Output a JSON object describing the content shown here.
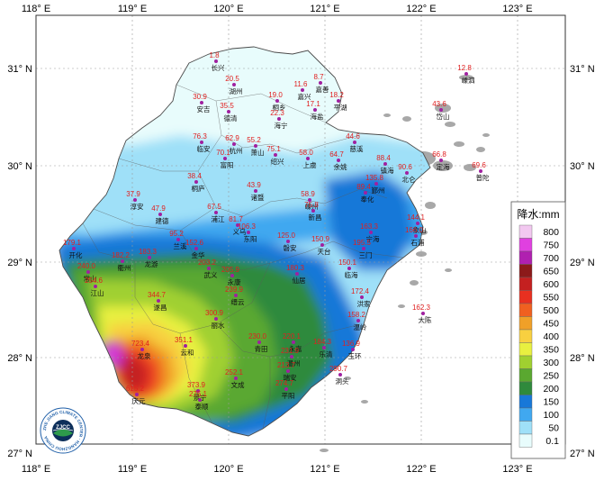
{
  "map": {
    "lon_ticks": [
      "118° E",
      "119° E",
      "120° E",
      "121° E",
      "122° E",
      "123° E"
    ],
    "lat_ticks": [
      "31° N",
      "30° N",
      "29° N",
      "28° N",
      "27° N"
    ],
    "logo_text": "ZJCC",
    "logo_ring_text": "ZHE JIANG CLIMATE CENTER · HANGZHOU CHINA",
    "land_color": "#b0b0b0",
    "ocean_color": "#ffffff"
  },
  "legend": {
    "title": "降水:mm",
    "labels": [
      "800",
      "750",
      "700",
      "650",
      "600",
      "550",
      "500",
      "450",
      "400",
      "350",
      "300",
      "250",
      "200",
      "150",
      "100",
      "50",
      "0.1"
    ],
    "colors": [
      "#f2c8f0",
      "#e040e0",
      "#b020b0",
      "#8c1a1a",
      "#c42020",
      "#e83020",
      "#f06020",
      "#f0a028",
      "#f8d040",
      "#e8f040",
      "#a0d030",
      "#5aa830",
      "#2f8a3c",
      "#1878d8",
      "#40a8f0",
      "#9fe0f8",
      "#e8fcfc"
    ]
  },
  "stations": [
    {
      "name": "长兴",
      "value": "1.8"
    },
    {
      "name": "湖州",
      "value": "20.5"
    },
    {
      "name": "安吉",
      "value": "30.9"
    },
    {
      "name": "德清",
      "value": "35.5"
    },
    {
      "name": "桐乡",
      "value": "19.0"
    },
    {
      "name": "嘉兴",
      "value": "11.6"
    },
    {
      "name": "嘉善",
      "value": "8.7"
    },
    {
      "name": "平湖",
      "value": "18.2"
    },
    {
      "name": "海盐",
      "value": "17.1"
    },
    {
      "name": "海宁",
      "value": "22.3"
    },
    {
      "name": "嵊泗",
      "value": "12.8"
    },
    {
      "name": "岱山",
      "value": "43.6"
    },
    {
      "name": "临安",
      "value": "76.3"
    },
    {
      "name": "杭州",
      "value": "62.9"
    },
    {
      "name": "萧山",
      "value": "55.2"
    },
    {
      "name": "富阳",
      "value": "70.1"
    },
    {
      "name": "绍兴",
      "value": "75.1"
    },
    {
      "name": "上虞",
      "value": "58.0"
    },
    {
      "name": "余姚",
      "value": "64.7"
    },
    {
      "name": "慈溪",
      "value": "44.6"
    },
    {
      "name": "镇海",
      "value": "88.4"
    },
    {
      "name": "北仑",
      "value": "90.6"
    },
    {
      "name": "定海",
      "value": "66.8"
    },
    {
      "name": "普陀",
      "value": "69.6"
    },
    {
      "name": "桐庐",
      "value": "38.4"
    },
    {
      "name": "诸暨",
      "value": "43.9"
    },
    {
      "name": "嵊州",
      "value": "58.9"
    },
    {
      "name": "新昌",
      "value": "75.8"
    },
    {
      "name": "奉化",
      "value": "89.4"
    },
    {
      "name": "鄞州",
      "value": "135.8"
    },
    {
      "name": "象山",
      "value": "144.1"
    },
    {
      "name": "石浦",
      "value": "166.0"
    },
    {
      "name": "宁海",
      "value": "163.3"
    },
    {
      "name": "三门",
      "value": "195.5"
    },
    {
      "name": "淳安",
      "value": "37.9"
    },
    {
      "name": "建德",
      "value": "47.9"
    },
    {
      "name": "浦江",
      "value": "67.5"
    },
    {
      "name": "义乌",
      "value": "81.7"
    },
    {
      "name": "东阳",
      "value": "106.3"
    },
    {
      "name": "磐安",
      "value": "125.0"
    },
    {
      "name": "天台",
      "value": "150.9"
    },
    {
      "name": "临海",
      "value": "150.1"
    },
    {
      "name": "开化",
      "value": "179.1"
    },
    {
      "name": "衢州",
      "value": "182.2"
    },
    {
      "name": "龙游",
      "value": "183.3"
    },
    {
      "name": "兰溪",
      "value": "95.2"
    },
    {
      "name": "金华",
      "value": "152.6"
    },
    {
      "name": "武义",
      "value": "203.2"
    },
    {
      "name": "永康",
      "value": "205.9"
    },
    {
      "name": "仙居",
      "value": "180.3"
    },
    {
      "name": "常山",
      "value": "240.0"
    },
    {
      "name": "江山",
      "value": "254.6"
    },
    {
      "name": "遂昌",
      "value": "344.7"
    },
    {
      "name": "缙云",
      "value": "239.9"
    },
    {
      "name": "洪家",
      "value": "172.4"
    },
    {
      "name": "大陈",
      "value": "162.3"
    },
    {
      "name": "丽水",
      "value": "300.9"
    },
    {
      "name": "温岭",
      "value": "158.2"
    },
    {
      "name": "龙泉",
      "value": "723.4"
    },
    {
      "name": "云和",
      "value": "351.1"
    },
    {
      "name": "青田",
      "value": "230.0"
    },
    {
      "name": "永嘉",
      "value": "220.1"
    },
    {
      "name": "乐清",
      "value": "184.3"
    },
    {
      "name": "玉环",
      "value": "136.9"
    },
    {
      "name": "温州",
      "value": "231.9"
    },
    {
      "name": "洞头",
      "value": "290.7"
    },
    {
      "name": "庆元",
      "value": "615.2"
    },
    {
      "name": "景宁",
      "value": "373.9"
    },
    {
      "name": "文成",
      "value": "252.1"
    },
    {
      "name": "瑞安",
      "value": "213.7"
    },
    {
      "name": "泰顺",
      "value": "275.1"
    },
    {
      "name": "平阳",
      "value": "274.7"
    }
  ]
}
